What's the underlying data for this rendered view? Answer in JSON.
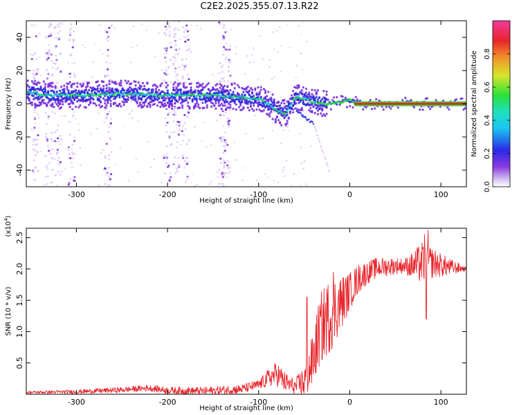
{
  "title": "C2E2.2025.355.07.13.R22",
  "chart_data": [
    {
      "type": "heatmap",
      "name": "spectrogram",
      "xlabel": "Height of straight line (km)",
      "ylabel": "Frequency (Hz)",
      "xlim": [
        -355,
        128
      ],
      "ylim": [
        -50,
        50
      ],
      "xticks": [
        -300,
        -200,
        -100,
        0,
        100
      ],
      "xtick_labels": [
        "-300",
        "-200",
        "-100",
        "0",
        "100"
      ],
      "yticks": [
        -40,
        -20,
        0,
        20,
        40
      ],
      "ytick_labels": [
        "-40",
        "-20",
        "0",
        "20",
        "40"
      ],
      "colorbar": {
        "label": "Normalized spectral amplitude",
        "range": [
          0,
          1
        ],
        "ticks": [
          0.0,
          0.2,
          0.4,
          0.6,
          0.8
        ],
        "tick_labels": [
          "0.0",
          "0.2",
          "0.4",
          "0.6",
          "0.8"
        ]
      },
      "ridge": {
        "x": [
          -350,
          -330,
          -300,
          -250,
          -200,
          -150,
          -120,
          -100,
          -90,
          -80,
          -70,
          -60,
          -50,
          -40,
          -30,
          -20,
          -10,
          0,
          10,
          50,
          100,
          128
        ],
        "freq": [
          7,
          5,
          5,
          6,
          5,
          5,
          4,
          3,
          0,
          -4,
          -6,
          4,
          3,
          1,
          0,
          0,
          1,
          2,
          0,
          0,
          0,
          0
        ]
      },
      "branch": {
        "x": [
          -60,
          -50,
          -40,
          -35,
          -30,
          -25,
          -22
        ],
        "freq": [
          -3,
          -8,
          -12,
          -20,
          -28,
          -36,
          -42
        ]
      },
      "noise_columns_x": [
        -345,
        -330,
        -320,
        -305,
        -265,
        -200,
        -190,
        -180,
        -140,
        -135
      ],
      "colors": {
        "low": "#dcc6f5",
        "mid": "#6e24d6",
        "blue": "#2a2ae0",
        "cyan": "#1fd6cf",
        "green": "#28e03c",
        "yellow": "#e0e62a",
        "red": "#e8242a"
      }
    },
    {
      "type": "line",
      "name": "snr",
      "xlabel": "Height of straight line (km)",
      "ylabel": "SNR (10 * v/v)",
      "y_multiplier_label": "(x10",
      "y_multiplier_exp": "4",
      "y_multiplier_close": ")",
      "xlim": [
        -355,
        128
      ],
      "ylim": [
        0,
        2.65
      ],
      "xticks": [
        -300,
        -200,
        -100,
        0,
        100
      ],
      "xtick_labels": [
        "-300",
        "-200",
        "-100",
        "0",
        "100"
      ],
      "yticks": [
        0.5,
        1.0,
        1.5,
        2.0,
        2.5
      ],
      "ytick_labels": [
        "0.5",
        "1.0",
        "1.5",
        "2.0",
        "2.5"
      ],
      "envelope": {
        "x": [
          -355,
          -300,
          -250,
          -220,
          -200,
          -160,
          -120,
          -100,
          -90,
          -80,
          -70,
          -60,
          -50,
          -40,
          -35,
          -30,
          -20,
          -10,
          0,
          10,
          20,
          30,
          50,
          70,
          80,
          90,
          100,
          110,
          128
        ],
        "y": [
          0.03,
          0.04,
          0.07,
          0.1,
          0.06,
          0.05,
          0.08,
          0.15,
          0.25,
          0.33,
          0.18,
          0.12,
          0.2,
          0.55,
          0.9,
          1.1,
          1.3,
          1.45,
          1.65,
          1.85,
          1.95,
          2.02,
          2.05,
          2.05,
          2.1,
          2.1,
          2.06,
          2.03,
          2.0
        ]
      },
      "noise_scale": {
        "x": [
          -355,
          -100,
          -80,
          -60,
          -40,
          -30,
          -20,
          -10,
          0,
          20,
          60,
          80,
          90,
          128
        ],
        "amp": [
          0.02,
          0.08,
          0.2,
          0.12,
          0.45,
          0.6,
          0.6,
          0.45,
          0.3,
          0.18,
          0.12,
          0.35,
          0.25,
          0.03
        ]
      },
      "spikes": [
        {
          "x": -18,
          "y": 1.95
        },
        {
          "x": -47,
          "y": 1.55
        },
        {
          "x": 82,
          "y": 2.55
        },
        {
          "x": 86,
          "y": 2.62
        },
        {
          "x": 84,
          "y": 1.2
        }
      ],
      "color": "#e8242a"
    }
  ]
}
